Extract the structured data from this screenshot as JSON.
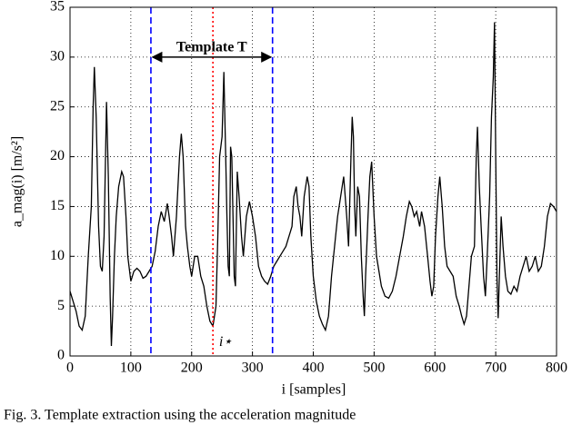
{
  "chart_data": {
    "type": "line",
    "xlabel": "i [samples]",
    "ylabel": "a_mag(i) [m/s²]",
    "caption": "Fig. 3. Template extraction using the acceleration magnitude",
    "xlim": [
      0,
      800
    ],
    "xticks": [
      0,
      100,
      200,
      300,
      400,
      500,
      600,
      700,
      800
    ],
    "ylim": [
      0,
      35
    ],
    "yticks": [
      0,
      5,
      10,
      15,
      20,
      25,
      30,
      35
    ],
    "grid": true,
    "series": [
      {
        "color": "#000000",
        "x": [
          0,
          5,
          10,
          15,
          20,
          25,
          30,
          35,
          38,
          40,
          43,
          47,
          50,
          53,
          56,
          60,
          63,
          66,
          68,
          70,
          73,
          76,
          80,
          85,
          88,
          92,
          95,
          100,
          105,
          110,
          115,
          120,
          125,
          130,
          135,
          140,
          145,
          150,
          155,
          160,
          163,
          167,
          170,
          175,
          180,
          183,
          186,
          190,
          193,
          197,
          200,
          205,
          210,
          215,
          220,
          225,
          230,
          235,
          240,
          243,
          246,
          250,
          253,
          256,
          258,
          260,
          262,
          264,
          266,
          268,
          270,
          272,
          275,
          278,
          282,
          285,
          290,
          295,
          300,
          305,
          310,
          315,
          320,
          325,
          330,
          335,
          340,
          345,
          350,
          355,
          360,
          365,
          368,
          372,
          375,
          378,
          381,
          385,
          390,
          393,
          396,
          400,
          405,
          410,
          415,
          420,
          425,
          430,
          435,
          440,
          445,
          450,
          455,
          458,
          462,
          464,
          466,
          468,
          470,
          473,
          476,
          479,
          482,
          484,
          486,
          490,
          493,
          496,
          500,
          504,
          508,
          512,
          518,
          524,
          530,
          536,
          542,
          548,
          553,
          558,
          562,
          566,
          570,
          575,
          578,
          583,
          588,
          592,
          595,
          598,
          601,
          605,
          608,
          612,
          616,
          620,
          625,
          630,
          635,
          640,
          644,
          648,
          652,
          656,
          660,
          665,
          668,
          670,
          673,
          676,
          680,
          683,
          686,
          690,
          693,
          696,
          698,
          700,
          702,
          704,
          706,
          709,
          712,
          716,
          720,
          725,
          730,
          735,
          740,
          745,
          750,
          755,
          760,
          765,
          770,
          775,
          780,
          785,
          790,
          795,
          800
        ],
        "values": [
          6.5,
          5.5,
          4.5,
          3,
          2.6,
          4,
          10,
          15,
          25,
          29,
          24,
          13,
          9,
          8.5,
          12,
          25.5,
          18,
          6,
          1,
          4,
          10,
          14,
          17,
          18.5,
          18,
          14,
          10,
          7.5,
          8.5,
          8.8,
          8.5,
          7.8,
          8,
          8.5,
          9,
          10.5,
          13,
          14.5,
          13.5,
          15.3,
          14,
          12,
          10,
          14,
          20,
          22.3,
          20,
          13,
          11,
          9,
          8,
          10,
          10,
          8,
          7,
          5,
          3.5,
          3,
          5,
          12,
          20,
          22,
          28.5,
          20,
          14,
          9,
          8,
          21,
          20,
          14,
          8,
          7,
          18.5,
          16,
          12,
          10,
          14,
          15.5,
          14,
          12,
          9,
          8,
          7.5,
          7.2,
          8,
          9,
          9.5,
          10,
          10.5,
          11,
          12,
          13,
          16,
          17,
          15,
          14,
          12,
          16,
          18,
          17,
          12,
          8,
          5.5,
          4,
          3.2,
          2.6,
          4,
          8,
          11,
          14,
          16,
          18,
          14,
          11,
          20,
          24,
          22,
          15,
          12,
          17,
          16,
          10,
          6,
          4,
          8,
          14,
          18,
          19.5,
          14,
          10,
          8.5,
          7,
          6,
          5.8,
          6.5,
          8,
          10,
          12,
          14,
          15.5,
          15,
          14,
          14.5,
          13,
          14.5,
          13,
          10,
          7.5,
          6,
          7,
          12,
          16,
          18,
          15,
          11,
          9,
          8.5,
          8,
          6,
          5,
          4,
          3.2,
          4,
          7,
          10,
          11,
          20,
          23,
          17,
          13,
          8,
          6,
          10,
          16,
          24,
          28,
          33.5,
          20,
          8,
          3.8,
          8,
          14,
          11,
          8,
          6.5,
          6.2,
          7,
          6.5,
          8,
          9,
          10,
          8.5,
          9,
          10,
          8.5,
          9,
          11,
          14,
          15.3,
          15,
          14.5
        ]
      }
    ],
    "markers": [
      {
        "x": 133,
        "color": "#0000ff",
        "style": "dashed"
      },
      {
        "x": 235,
        "color": "#ff0000",
        "style": "dotted"
      },
      {
        "x": 333,
        "color": "#0000ff",
        "style": "dashed"
      }
    ],
    "span": {
      "label": "Template T",
      "x": [
        133,
        333
      ],
      "y": 30
    },
    "point_label": {
      "label": "i⋆",
      "x": 245,
      "y": 3
    }
  }
}
